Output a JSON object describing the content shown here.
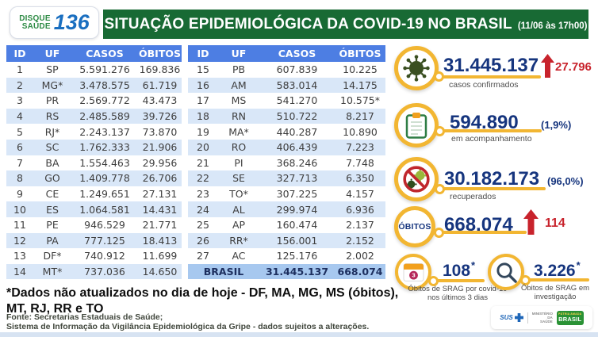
{
  "header": {
    "logo": {
      "top": "DISQUE",
      "bottom": "SAÚDE",
      "number": "136"
    },
    "title": "SITUAÇÃO EPIDEMIOLÓGICA DA COVID-19 NO BRASIL",
    "timestamp": "(11/06 às 17h00)"
  },
  "tables": {
    "headers": [
      "ID",
      "UF",
      "CASOS",
      "ÓBITOS"
    ],
    "left": [
      [
        "1",
        "SP",
        "5.591.276",
        "169.836"
      ],
      [
        "2",
        "MG*",
        "3.478.575",
        "61.719"
      ],
      [
        "3",
        "PR",
        "2.569.772",
        "43.473"
      ],
      [
        "4",
        "RS",
        "2.485.589",
        "39.726"
      ],
      [
        "5",
        "RJ*",
        "2.243.137",
        "73.870"
      ],
      [
        "6",
        "SC",
        "1.762.333",
        "21.906"
      ],
      [
        "7",
        "BA",
        "1.554.463",
        "29.956"
      ],
      [
        "8",
        "GO",
        "1.409.778",
        "26.706"
      ],
      [
        "9",
        "CE",
        "1.249.651",
        "27.131"
      ],
      [
        "10",
        "ES",
        "1.064.581",
        "14.431"
      ],
      [
        "11",
        "PE",
        "946.529",
        "21.771"
      ],
      [
        "12",
        "PA",
        "777.125",
        "18.413"
      ],
      [
        "13",
        "DF*",
        "740.912",
        "11.699"
      ],
      [
        "14",
        "MT*",
        "737.036",
        "14.650"
      ]
    ],
    "right": [
      [
        "15",
        "PB",
        "607.839",
        "10.225"
      ],
      [
        "16",
        "AM",
        "583.014",
        "14.175"
      ],
      [
        "17",
        "MS",
        "541.270",
        "10.575*"
      ],
      [
        "18",
        "RN",
        "510.722",
        "8.217"
      ],
      [
        "19",
        "MA*",
        "440.287",
        "10.890"
      ],
      [
        "20",
        "RO",
        "406.439",
        "7.223"
      ],
      [
        "21",
        "PI",
        "368.246",
        "7.748"
      ],
      [
        "22",
        "SE",
        "327.713",
        "6.350"
      ],
      [
        "23",
        "TO*",
        "307.225",
        "4.157"
      ],
      [
        "24",
        "AL",
        "299.974",
        "6.936"
      ],
      [
        "25",
        "AP",
        "160.474",
        "2.137"
      ],
      [
        "26",
        "RR*",
        "156.001",
        "2.152"
      ],
      [
        "27",
        "AC",
        "125.176",
        "2.002"
      ]
    ],
    "total": {
      "label": "BRASIL",
      "casos": "31.445.137",
      "obitos": "668.074"
    }
  },
  "stats": {
    "confirmed": {
      "value": "31.445.137",
      "delta": "27.796",
      "label": "casos confirmados"
    },
    "monitoring": {
      "value": "594.890",
      "pct": "(1,9%)",
      "label": "em acompanhamento"
    },
    "recovered": {
      "value": "30.182.173",
      "pct": "(96,0%)",
      "label": "recuperados"
    },
    "deaths": {
      "icon_label": "ÓBITOS",
      "value": "668.074",
      "delta": "114"
    },
    "srag_deaths": {
      "value": "108",
      "star": "*",
      "label": "Óbitos de SRAG por covid-19 nos últimos 3 dias"
    },
    "srag_investigation": {
      "value": "3.226",
      "star": "*",
      "label": "Óbitos de SRAG em investigação"
    }
  },
  "footnote": {
    "line1": "*Dados não atualizados no dia de hoje - DF, MA, MG, MS (óbitos),",
    "line2": "MT, RJ, RR e TO"
  },
  "source": {
    "line1": "Fonte: Secretarias Estaduais de Saúde;",
    "line2": "Sistema de Informação da Vigilância Epidemiológica da Gripe - dados sujeitos a alterações."
  },
  "logos": {
    "sus": "SUS",
    "ministerio_line1": "MINISTÉRIO DA",
    "ministerio_line2": "SAÚDE",
    "patria_top": "PÁTRIA AMADA",
    "patria_main": "BRASIL"
  },
  "colors": {
    "banner_green": "#186a34",
    "table_header_blue": "#4d7ee3",
    "row_stripe_blue": "#d9e7f8",
    "total_row_blue": "#a7c8ef",
    "stat_number_navy": "#16357e",
    "alert_red": "#c8232c",
    "accent_yellow": "#f2b632",
    "virus_green": "#3a4f21"
  }
}
